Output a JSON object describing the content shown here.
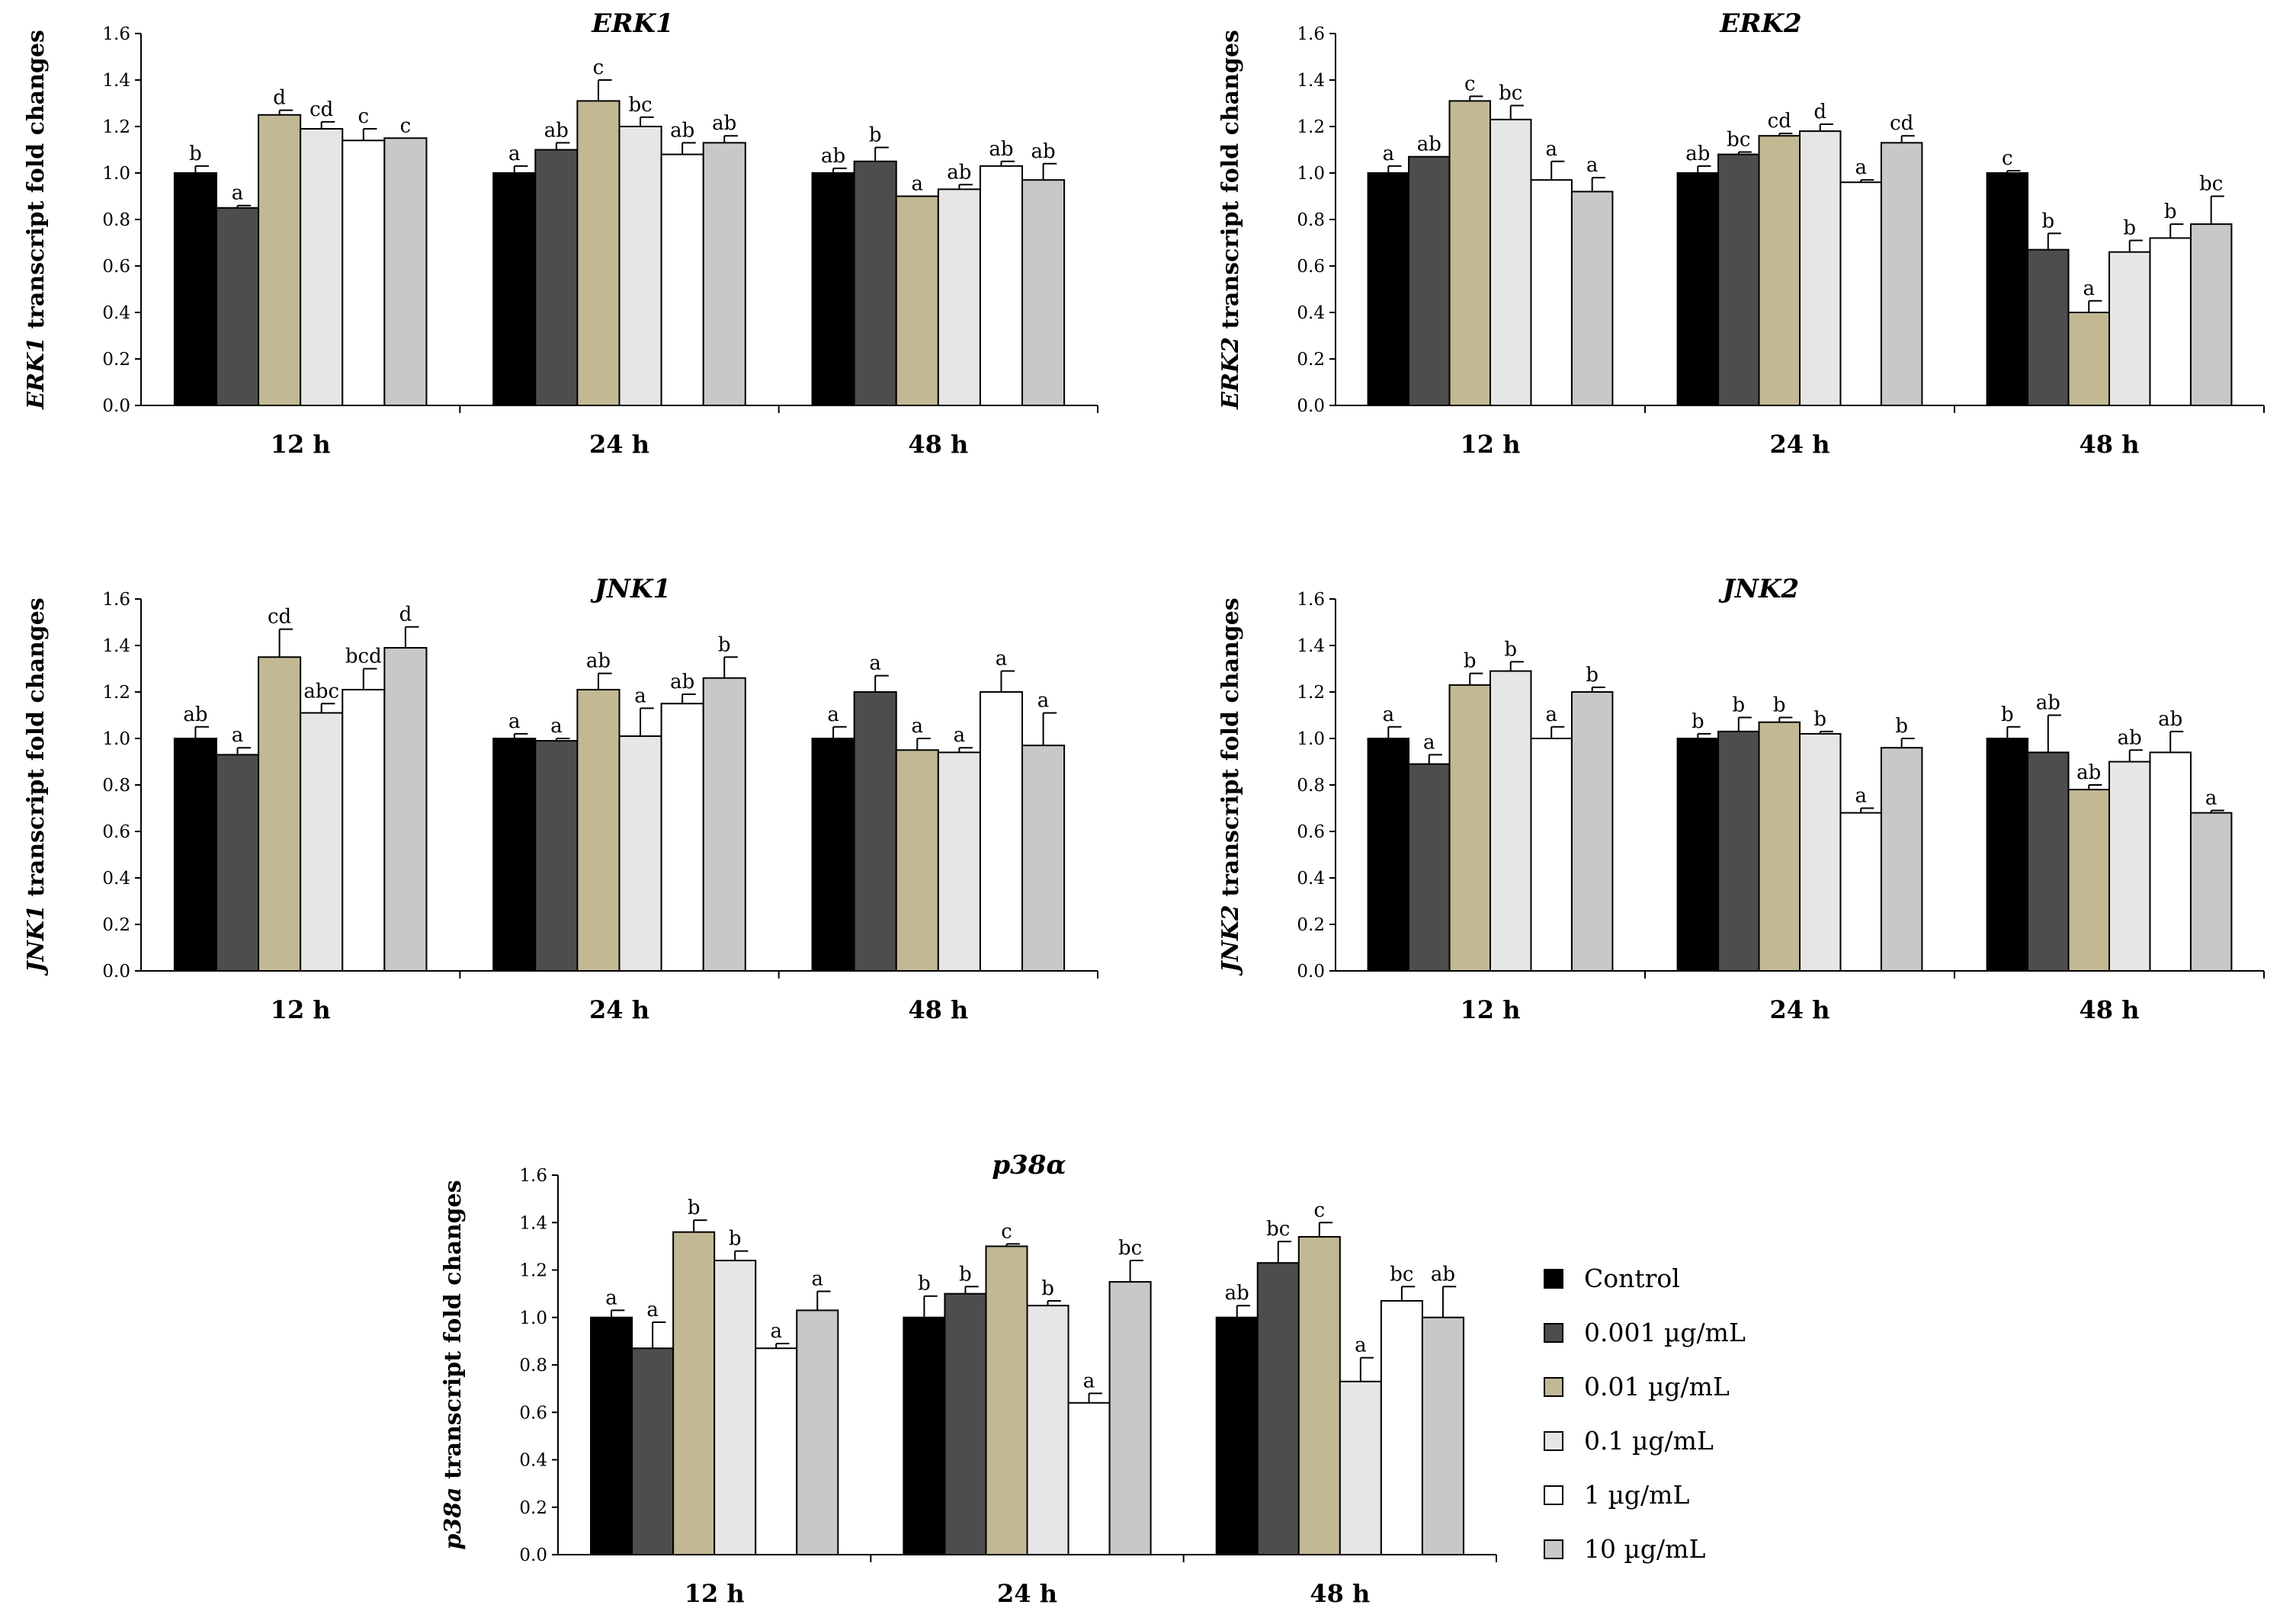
{
  "colors": [
    "#000000",
    "#4d4d4d",
    "#c2b994",
    "#e6e6e6",
    "#ffffff",
    "#c8c8c8"
  ],
  "legend": [
    "Control",
    "0.001 µg/mL",
    "0.01 µg/mL",
    "0.1 µg/mL",
    "1 µg/mL",
    "10 µg/mL"
  ],
  "chart_data": [
    {
      "type": "bar",
      "title": "ERK1",
      "ylabel_gene": "ERK1",
      "ylabel_rest": " transcript fold changes",
      "categories": [
        "12 h",
        "24 h",
        "48 h"
      ],
      "ylim": [
        0.0,
        1.6
      ],
      "yticks": [
        "0.0",
        "0.2",
        "0.4",
        "0.6",
        "0.8",
        "1.0",
        "1.2",
        "1.4",
        "1.6"
      ],
      "values": [
        [
          1.0,
          0.85,
          1.25,
          1.19,
          1.14,
          1.15
        ],
        [
          1.0,
          1.1,
          1.31,
          1.2,
          1.08,
          1.13
        ],
        [
          1.0,
          1.05,
          0.9,
          0.93,
          1.03,
          0.97
        ]
      ],
      "errors": [
        [
          0.03,
          0.01,
          0.02,
          0.03,
          0.05,
          0.0
        ],
        [
          0.03,
          0.03,
          0.09,
          0.04,
          0.05,
          0.03
        ],
        [
          0.02,
          0.06,
          0.0,
          0.02,
          0.02,
          0.07
        ]
      ],
      "letters": [
        [
          "b",
          "a",
          "d",
          "cd",
          "c",
          "c"
        ],
        [
          "a",
          "ab",
          "c",
          "bc",
          "ab",
          "ab"
        ],
        [
          "ab",
          "b",
          "a",
          "ab",
          "ab",
          "ab"
        ]
      ]
    },
    {
      "type": "bar",
      "title": "ERK2",
      "ylabel_gene": "ERK2",
      "ylabel_rest": " transcript fold changes",
      "categories": [
        "12 h",
        "24 h",
        "48 h"
      ],
      "ylim": [
        0.0,
        1.6
      ],
      "yticks": [
        "0.0",
        "0.2",
        "0.4",
        "0.6",
        "0.8",
        "1.0",
        "1.2",
        "1.4",
        "1.6"
      ],
      "values": [
        [
          1.0,
          1.07,
          1.31,
          1.23,
          0.97,
          0.92
        ],
        [
          1.0,
          1.08,
          1.16,
          1.18,
          0.96,
          1.13
        ],
        [
          1.0,
          0.67,
          0.4,
          0.66,
          0.72,
          0.78
        ]
      ],
      "errors": [
        [
          0.03,
          0.0,
          0.02,
          0.06,
          0.08,
          0.06
        ],
        [
          0.03,
          0.01,
          0.01,
          0.03,
          0.01,
          0.03
        ],
        [
          0.01,
          0.07,
          0.05,
          0.05,
          0.06,
          0.12
        ]
      ],
      "letters": [
        [
          "a",
          "ab",
          "c",
          "bc",
          "a",
          "a"
        ],
        [
          "ab",
          "bc",
          "cd",
          "d",
          "a",
          "cd"
        ],
        [
          "c",
          "b",
          "a",
          "b",
          "b",
          "bc"
        ]
      ]
    },
    {
      "type": "bar",
      "title": "JNK1",
      "ylabel_gene": "JNK1",
      "ylabel_rest": " transcript fold changes",
      "categories": [
        "12 h",
        "24 h",
        "48 h"
      ],
      "ylim": [
        0.0,
        1.6
      ],
      "yticks": [
        "0.0",
        "0.2",
        "0.4",
        "0.6",
        "0.8",
        "1.0",
        "1.2",
        "1.4",
        "1.6"
      ],
      "values": [
        [
          1.0,
          0.93,
          1.35,
          1.11,
          1.21,
          1.39
        ],
        [
          1.0,
          0.99,
          1.21,
          1.01,
          1.15,
          1.26
        ],
        [
          1.0,
          1.2,
          0.95,
          0.94,
          1.2,
          0.97
        ]
      ],
      "errors": [
        [
          0.05,
          0.03,
          0.12,
          0.04,
          0.09,
          0.09
        ],
        [
          0.02,
          0.01,
          0.07,
          0.12,
          0.04,
          0.09
        ],
        [
          0.05,
          0.07,
          0.05,
          0.02,
          0.09,
          0.14
        ]
      ],
      "letters": [
        [
          "ab",
          "a",
          "cd",
          "abc",
          "bcd",
          "d"
        ],
        [
          "a",
          "a",
          "ab",
          "a",
          "ab",
          "b"
        ],
        [
          "a",
          "a",
          "a",
          "a",
          "a",
          "a"
        ]
      ]
    },
    {
      "type": "bar",
      "title": "JNK2",
      "ylabel_gene": "JNK2",
      "ylabel_rest": " transcript fold changes",
      "categories": [
        "12 h",
        "24 h",
        "48 h"
      ],
      "ylim": [
        0.0,
        1.6
      ],
      "yticks": [
        "0.0",
        "0.2",
        "0.4",
        "0.6",
        "0.8",
        "1.0",
        "1.2",
        "1.4",
        "1.6"
      ],
      "values": [
        [
          1.0,
          0.89,
          1.23,
          1.29,
          1.0,
          1.2
        ],
        [
          1.0,
          1.03,
          1.07,
          1.02,
          0.68,
          0.96
        ],
        [
          1.0,
          0.94,
          0.78,
          0.9,
          0.94,
          0.68
        ]
      ],
      "errors": [
        [
          0.05,
          0.04,
          0.05,
          0.04,
          0.05,
          0.02
        ],
        [
          0.02,
          0.06,
          0.02,
          0.01,
          0.02,
          0.04
        ],
        [
          0.05,
          0.16,
          0.02,
          0.05,
          0.09,
          0.01
        ]
      ],
      "letters": [
        [
          "a",
          "a",
          "b",
          "b",
          "a",
          "b"
        ],
        [
          "b",
          "b",
          "b",
          "b",
          "a",
          "b"
        ],
        [
          "b",
          "ab",
          "ab",
          "ab",
          "ab",
          "a"
        ]
      ]
    },
    {
      "type": "bar",
      "title": "p38α",
      "ylabel_gene": "p38a",
      "ylabel_rest": " transcript fold changes",
      "categories": [
        "12 h",
        "24 h",
        "48 h"
      ],
      "ylim": [
        0.0,
        1.6
      ],
      "yticks": [
        "0.0",
        "0.2",
        "0.4",
        "0.6",
        "0.8",
        "1.0",
        "1.2",
        "1.4",
        "1.6"
      ],
      "values": [
        [
          1.0,
          0.87,
          1.36,
          1.24,
          0.87,
          1.03
        ],
        [
          1.0,
          1.1,
          1.3,
          1.05,
          0.64,
          1.15
        ],
        [
          1.0,
          1.23,
          1.34,
          0.73,
          1.07,
          1.0
        ]
      ],
      "errors": [
        [
          0.03,
          0.11,
          0.05,
          0.04,
          0.02,
          0.08
        ],
        [
          0.09,
          0.03,
          0.01,
          0.02,
          0.04,
          0.09
        ],
        [
          0.05,
          0.09,
          0.06,
          0.1,
          0.06,
          0.13
        ]
      ],
      "letters": [
        [
          "a",
          "a",
          "b",
          "b",
          "a",
          "a"
        ],
        [
          "b",
          "b",
          "c",
          "b",
          "a",
          "bc"
        ],
        [
          "ab",
          "bc",
          "c",
          "a",
          "bc",
          "ab"
        ]
      ]
    }
  ]
}
